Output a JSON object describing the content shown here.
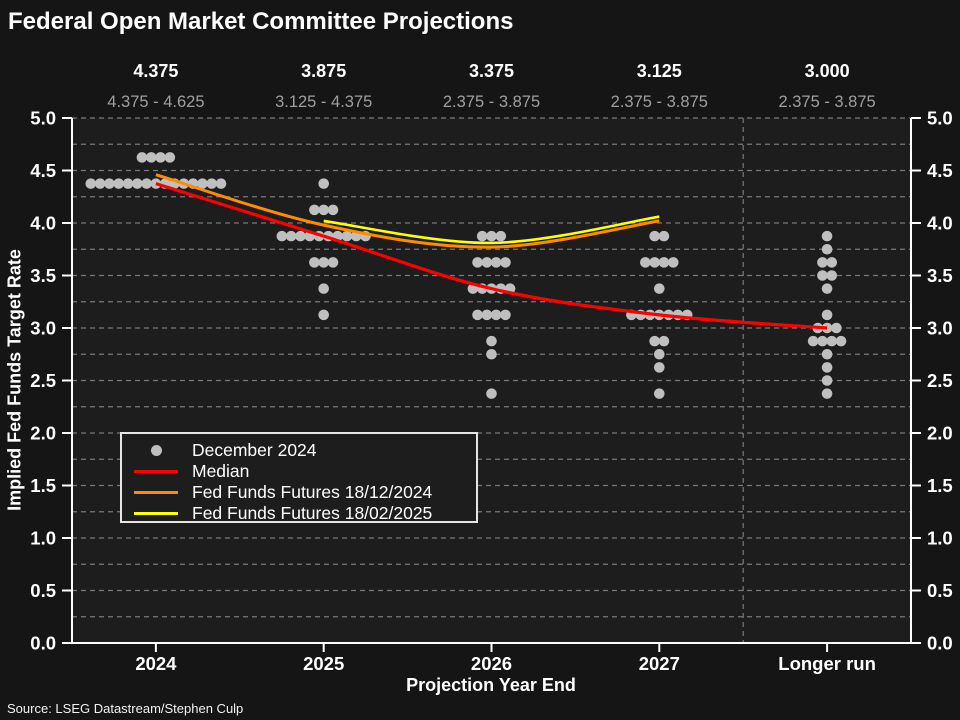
{
  "page": {
    "title": "Federal Open Market Committee Projections",
    "source": "Source: LSEG Datastream/Stephen Culp"
  },
  "chart_data": {
    "type": "scatter",
    "title": "Federal Open Market Committee Projections",
    "xlabel": "Projection Year End",
    "ylabel": "Implied Fed Funds Target Rate",
    "ylim": [
      0.0,
      5.0
    ],
    "ytick_step": 0.5,
    "grid_step": 0.25,
    "grid": true,
    "background": "#1d1d1d",
    "grid_color": "#7a7a7a",
    "axis_color": "#ffffff",
    "categories": [
      "2024",
      "2025",
      "2026",
      "2027",
      "Longer run"
    ],
    "category_divider_before": "Longer run",
    "top_annotations": {
      "medians": [
        "4.375",
        "3.875",
        "3.375",
        "3.125",
        "3.000"
      ],
      "ranges": [
        "4.375 - 4.625",
        "3.125 - 4.375",
        "2.375 - 3.875",
        "2.375 - 3.875",
        "2.375 - 3.875"
      ]
    },
    "dot_series": {
      "name": "December 2024",
      "color": "#bfbfbf",
      "points": [
        {
          "category": "2024",
          "value": 4.625,
          "count": 4
        },
        {
          "category": "2024",
          "value": 4.375,
          "count": 15
        },
        {
          "category": "2025",
          "value": 4.375,
          "count": 1
        },
        {
          "category": "2025",
          "value": 4.125,
          "count": 3
        },
        {
          "category": "2025",
          "value": 3.875,
          "count": 10
        },
        {
          "category": "2025",
          "value": 3.625,
          "count": 3
        },
        {
          "category": "2025",
          "value": 3.375,
          "count": 1
        },
        {
          "category": "2025",
          "value": 3.125,
          "count": 1
        },
        {
          "category": "2026",
          "value": 3.875,
          "count": 3
        },
        {
          "category": "2026",
          "value": 3.625,
          "count": 4
        },
        {
          "category": "2026",
          "value": 3.375,
          "count": 5
        },
        {
          "category": "2026",
          "value": 3.125,
          "count": 4
        },
        {
          "category": "2026",
          "value": 2.875,
          "count": 1
        },
        {
          "category": "2026",
          "value": 2.75,
          "count": 1
        },
        {
          "category": "2026",
          "value": 2.375,
          "count": 1
        },
        {
          "category": "2027",
          "value": 3.875,
          "count": 2
        },
        {
          "category": "2027",
          "value": 3.625,
          "count": 4
        },
        {
          "category": "2027",
          "value": 3.375,
          "count": 1
        },
        {
          "category": "2027",
          "value": 3.125,
          "count": 7
        },
        {
          "category": "2027",
          "value": 2.875,
          "count": 2
        },
        {
          "category": "2027",
          "value": 2.75,
          "count": 1
        },
        {
          "category": "2027",
          "value": 2.625,
          "count": 1
        },
        {
          "category": "2027",
          "value": 2.375,
          "count": 1
        },
        {
          "category": "Longer run",
          "value": 3.875,
          "count": 1
        },
        {
          "category": "Longer run",
          "value": 3.75,
          "count": 1
        },
        {
          "category": "Longer run",
          "value": 3.625,
          "count": 2
        },
        {
          "category": "Longer run",
          "value": 3.5,
          "count": 2
        },
        {
          "category": "Longer run",
          "value": 3.375,
          "count": 1
        },
        {
          "category": "Longer run",
          "value": 3.125,
          "count": 1
        },
        {
          "category": "Longer run",
          "value": 3.0,
          "count": 3
        },
        {
          "category": "Longer run",
          "value": 2.875,
          "count": 4
        },
        {
          "category": "Longer run",
          "value": 2.75,
          "count": 1
        },
        {
          "category": "Longer run",
          "value": 2.625,
          "count": 1
        },
        {
          "category": "Longer run",
          "value": 2.5,
          "count": 1
        },
        {
          "category": "Longer run",
          "value": 2.375,
          "count": 1
        }
      ]
    },
    "series": [
      {
        "name": "Median",
        "color": "#ff0000",
        "x": [
          "2024",
          "2025",
          "2026",
          "2027",
          "Longer run"
        ],
        "values": [
          4.375,
          3.875,
          3.375,
          3.125,
          3.0
        ]
      },
      {
        "name": "Fed Funds Futures 18/12/2024",
        "color": "#ff8c00",
        "x": [
          "2024",
          "2025",
          "2026",
          "2027"
        ],
        "values": [
          4.46,
          3.98,
          3.77,
          4.02
        ]
      },
      {
        "name": "Fed Funds Futures 18/02/2025",
        "color": "#ffff00",
        "x": [
          "2025",
          "2026",
          "2027"
        ],
        "values": [
          4.02,
          3.81,
          4.06
        ]
      }
    ],
    "legend": {
      "position": "lower-left",
      "entries": [
        {
          "label": "December 2024",
          "marker": "dot",
          "color": "#bfbfbf"
        },
        {
          "label": "Median",
          "marker": "line",
          "color": "#ff0000"
        },
        {
          "label": "Fed Funds Futures 18/12/2024",
          "marker": "line",
          "color": "#ff8c00"
        },
        {
          "label": "Fed Funds Futures 18/02/2025",
          "marker": "line",
          "color": "#ffff00"
        }
      ]
    }
  }
}
